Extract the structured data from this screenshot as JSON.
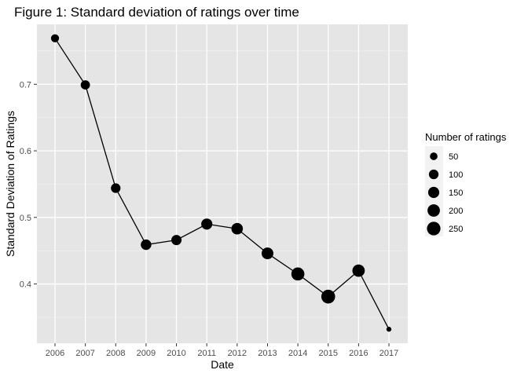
{
  "chart_data": {
    "type": "line",
    "title": "Figure 1: Standard deviation of ratings over time",
    "xlabel": "Date",
    "ylabel": "Standard Deviation of Ratings",
    "x": [
      "2006",
      "2007",
      "2008",
      "2009",
      "2010",
      "2011",
      "2012",
      "2013",
      "2014",
      "2015",
      "2016",
      "2017"
    ],
    "series": [
      {
        "values": [
          0.769,
          0.699,
          0.544,
          0.459,
          0.466,
          0.49,
          0.483,
          0.446,
          0.415,
          0.381,
          0.42,
          0.332
        ],
        "sizes": [
          60,
          90,
          100,
          130,
          120,
          150,
          165,
          175,
          230,
          265,
          200,
          10
        ]
      }
    ],
    "size_legend": {
      "title": "Number of ratings",
      "breaks": [
        50,
        100,
        150,
        200,
        250
      ],
      "labels": [
        "50",
        "100",
        "150",
        "200",
        "250"
      ]
    },
    "y_ticks": [
      0.4,
      0.5,
      0.6,
      0.7
    ],
    "y_tick_labels": [
      "0.4",
      "0.5",
      "0.6",
      "0.7"
    ],
    "ylim": [
      0.311,
      0.79
    ],
    "grid": true,
    "legend_position": "right",
    "colors": {
      "panel": "#e5e5e5",
      "grid": "#ffffff",
      "line": "#000000",
      "point": "#000000"
    }
  }
}
